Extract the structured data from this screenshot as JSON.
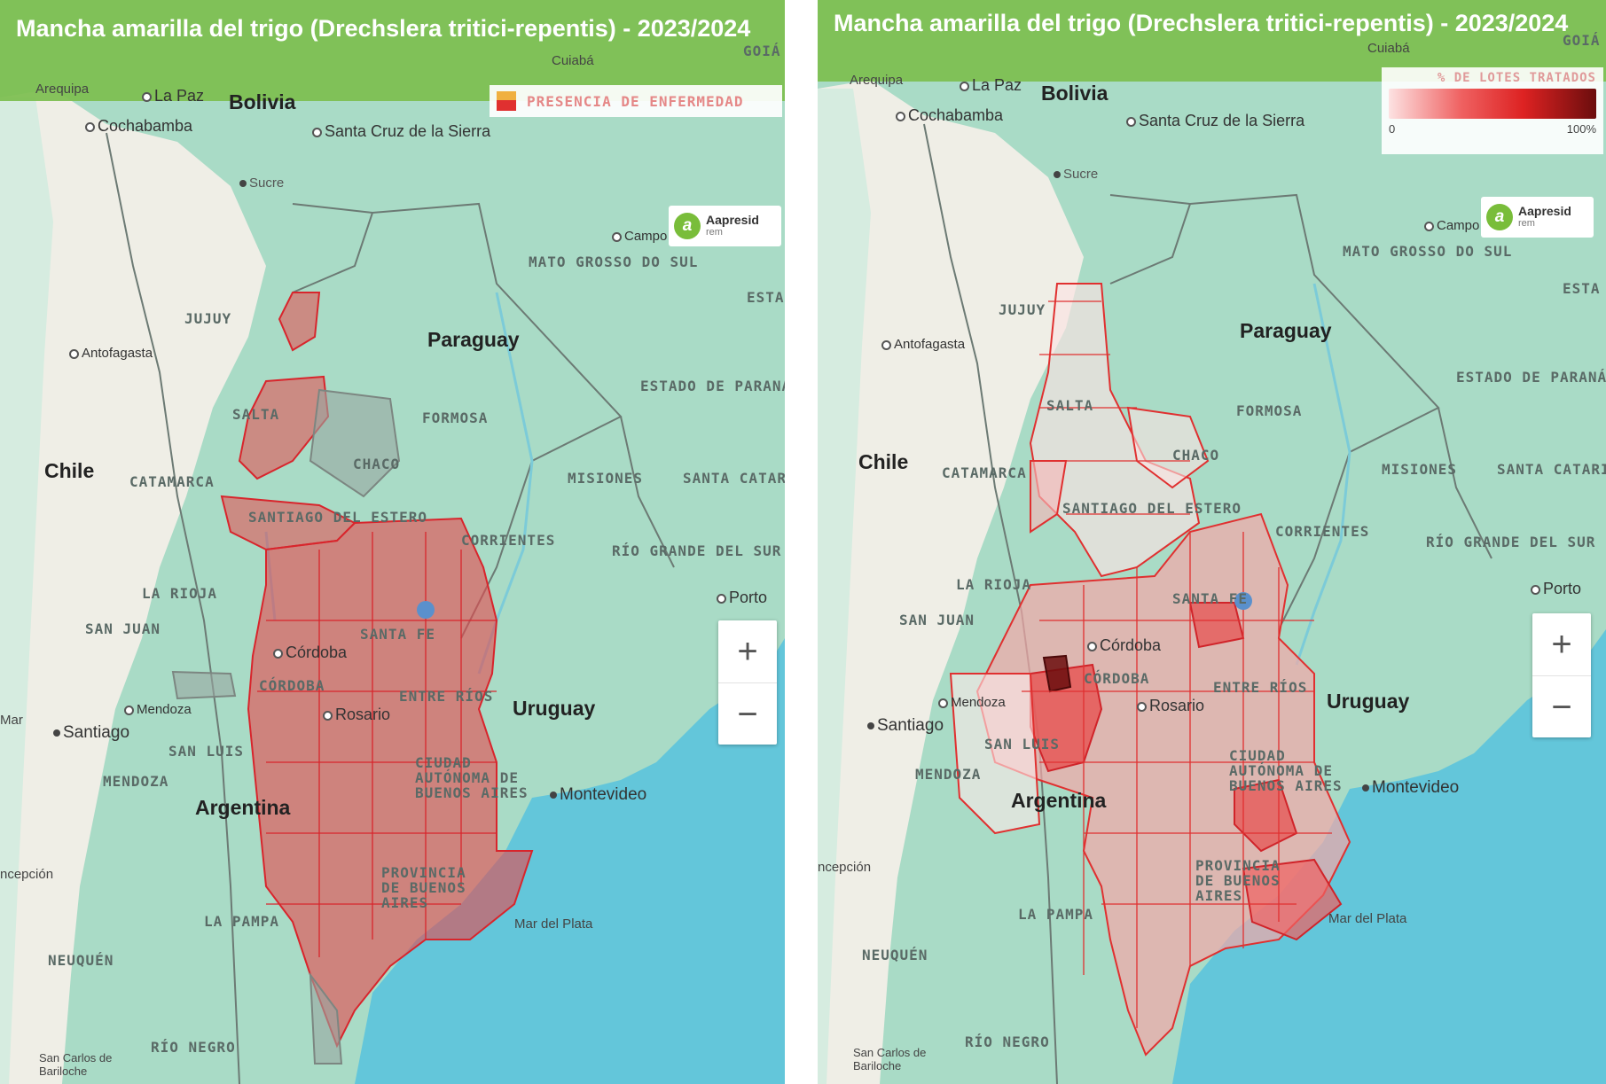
{
  "left_panel": {
    "title": "Mancha amarilla del trigo (Drechslera tritici-repentis) - 2023/2024",
    "legend_label": "PRESENCIA DE ENFERMEDAD",
    "logo": {
      "name": "Aapresid",
      "sub": "rem"
    },
    "zoom_in": "+",
    "zoom_out": "−"
  },
  "right_panel": {
    "title": "Mancha amarilla del trigo (Drechslera tritici-repentis) - 2023/2024",
    "legend_label": "% DE LOTES TRATADOS",
    "legend_min": "0",
    "legend_max": "100%",
    "logo": {
      "name": "Aapresid",
      "sub": "rem"
    },
    "zoom_in": "+",
    "zoom_out": "−"
  },
  "labels": {
    "bolivia": "Bolivia",
    "chile": "Chile",
    "paraguay": "Paraguay",
    "uruguay": "Uruguay",
    "argentina": "Argentina",
    "arequipa": "Arequipa",
    "la_paz": "La Paz",
    "cochabamba": "Cochabamba",
    "santa_cruz": "Santa Cruz de la Sierra",
    "sucre": "Sucre",
    "cuiaba": "Cuiabá",
    "goia": "GOIÁ",
    "campo": "Campo",
    "mato_grosso": "MATO GROSSO DO SUL",
    "sao_paulo": "ESTA SÃO",
    "antofagasta": "Antofagasta",
    "jujuy": "JUJUY",
    "salta": "SALTA",
    "formosa": "FORMOSA",
    "estado_parana": "ESTADO DE PARANÁ",
    "chaco": "CHACO",
    "catamarca": "CATAMARCA",
    "misiones": "MISIONES",
    "santa_catarina": "SANTA CATARINA",
    "santiago_estero": "SANTIAGO DEL ESTERO",
    "corrientes": "CORRIENTES",
    "rio_grande": "RÍO GRANDE DEL SUR",
    "la_rioja": "LA RIOJA",
    "santa_fe": "SANTA FE",
    "porto": "Porto",
    "san_juan": "SAN JUAN",
    "cordoba_city": "Córdoba",
    "cordoba_prov": "CÓRDOBA",
    "mendoza_city": "Mendoza",
    "entre_rios": "ENTRE RÍOS",
    "rosario": "Rosario",
    "santiago": "Santiago",
    "san_luis": "SAN LUIS",
    "ciudad_ba": "CIUDAD AUTÓNOMA DE BUENOS AIRES",
    "mendoza_prov": "MENDOZA",
    "montevideo": "Montevideo",
    "concepcion": "ncepción",
    "provincia_ba": "PROVINCIA DE BUENOS AIRES",
    "la_pampa": "LA PAMPA",
    "mar_del_plata": "Mar del Plata",
    "neuquen": "NEUQUÉN",
    "rio_negro": "RÍO NEGRO",
    "san_carlos": "San Carlos de Bariloche",
    "mar": "Mar"
  },
  "colors": {
    "ocean": "#63c6da",
    "land_green": "#a9dbc6",
    "land_desert": "#efeee6",
    "title_bar": "#7dbe50",
    "presence": "#e8484c",
    "presence_grey": "#9aa6a1"
  }
}
